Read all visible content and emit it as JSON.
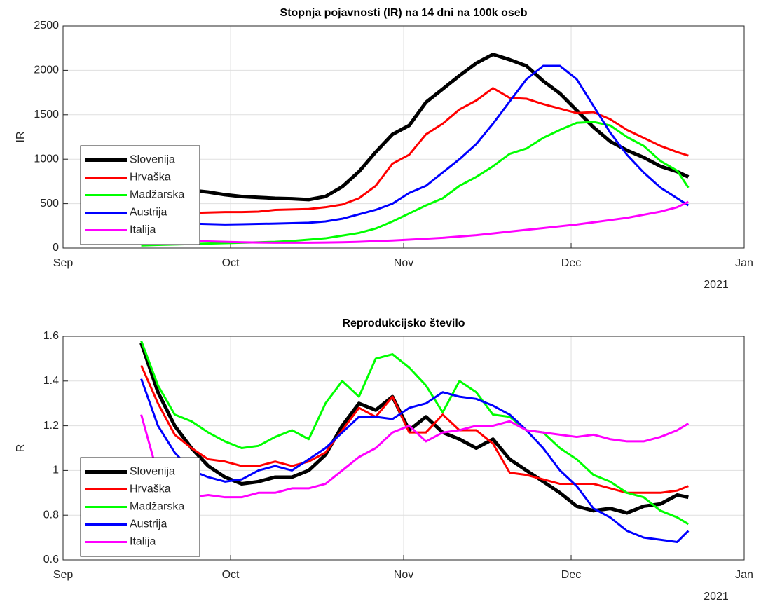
{
  "chart_data": [
    {
      "type": "line",
      "title": "Stopnja pojavnosti (IR) na 14 dni na 100k oseb",
      "ylabel": "IR",
      "x": [
        14,
        17,
        20,
        23,
        26,
        29,
        32,
        35,
        38,
        41,
        44,
        47,
        50,
        53,
        56,
        59,
        62,
        65,
        68,
        71,
        74,
        77,
        80,
        83,
        86,
        89,
        92,
        95,
        98,
        101,
        104,
        107,
        110,
        112
      ],
      "xlim": [
        0,
        122
      ],
      "xticks": [
        {
          "value": 0,
          "label": "Sep"
        },
        {
          "value": 30,
          "label": "Oct"
        },
        {
          "value": 61,
          "label": "Nov"
        },
        {
          "value": 91,
          "label": "Dec"
        },
        {
          "value": 122,
          "label": "Jan"
        }
      ],
      "x_annotation": "2021",
      "ylim": [
        0,
        2500
      ],
      "yticks": [
        0,
        500,
        1000,
        1500,
        2000,
        2500
      ],
      "grid": true,
      "legend": "lower left",
      "series": [
        {
          "name": "Slovenija",
          "color": "#000000",
          "values": [
            690,
            680,
            670,
            650,
            630,
            600,
            580,
            570,
            560,
            555,
            545,
            580,
            690,
            860,
            1080,
            1280,
            1380,
            1640,
            1790,
            1940,
            2080,
            2180,
            2120,
            2050,
            1880,
            1740,
            1550,
            1360,
            1200,
            1100,
            1020,
            920,
            860,
            800
          ]
        },
        {
          "name": "Hrvaška",
          "color": "#ff0000",
          "values": [
            390,
            390,
            390,
            395,
            400,
            405,
            405,
            410,
            430,
            435,
            440,
            460,
            490,
            560,
            700,
            950,
            1050,
            1280,
            1400,
            1560,
            1660,
            1800,
            1690,
            1680,
            1620,
            1570,
            1520,
            1530,
            1450,
            1330,
            1240,
            1150,
            1080,
            1040
          ]
        },
        {
          "name": "Madžarska",
          "color": "#00ff00",
          "values": [
            30,
            35,
            40,
            45,
            50,
            55,
            60,
            65,
            70,
            80,
            95,
            110,
            140,
            170,
            220,
            300,
            390,
            480,
            560,
            700,
            800,
            920,
            1060,
            1120,
            1240,
            1330,
            1410,
            1420,
            1380,
            1250,
            1150,
            980,
            870,
            680
          ]
        },
        {
          "name": "Austrija",
          "color": "#0000ff",
          "values": [
            290,
            285,
            280,
            275,
            270,
            265,
            268,
            272,
            275,
            280,
            285,
            300,
            330,
            380,
            430,
            500,
            620,
            700,
            850,
            1000,
            1170,
            1400,
            1650,
            1900,
            2050,
            2050,
            1900,
            1600,
            1300,
            1050,
            850,
            680,
            560,
            480
          ]
        },
        {
          "name": "Italija",
          "color": "#ff00ff",
          "values": [
            110,
            100,
            90,
            80,
            75,
            70,
            65,
            62,
            60,
            60,
            60,
            62,
            65,
            70,
            78,
            85,
            95,
            105,
            115,
            130,
            145,
            165,
            185,
            205,
            225,
            245,
            265,
            290,
            315,
            340,
            375,
            410,
            460,
            520
          ]
        }
      ]
    },
    {
      "type": "line",
      "title": "Reprodukcijsko število",
      "ylabel": "R",
      "x": [
        14,
        17,
        20,
        23,
        26,
        29,
        32,
        35,
        38,
        41,
        44,
        47,
        50,
        53,
        56,
        59,
        62,
        65,
        68,
        71,
        74,
        77,
        80,
        83,
        86,
        89,
        92,
        95,
        98,
        101,
        104,
        107,
        110,
        112
      ],
      "xlim": [
        0,
        122
      ],
      "xticks": [
        {
          "value": 0,
          "label": "Sep"
        },
        {
          "value": 30,
          "label": "Oct"
        },
        {
          "value": 61,
          "label": "Nov"
        },
        {
          "value": 91,
          "label": "Dec"
        },
        {
          "value": 122,
          "label": "Jan"
        }
      ],
      "x_annotation": "2021",
      "ylim": [
        0.6,
        1.6
      ],
      "yticks": [
        0.6,
        0.8,
        1,
        1.2,
        1.4,
        1.6
      ],
      "grid": true,
      "legend": "lower left",
      "series": [
        {
          "name": "Slovenija",
          "color": "#000000",
          "values": [
            1.57,
            1.35,
            1.2,
            1.1,
            1.02,
            0.97,
            0.94,
            0.95,
            0.97,
            0.97,
            1.0,
            1.07,
            1.2,
            1.3,
            1.27,
            1.33,
            1.18,
            1.24,
            1.17,
            1.14,
            1.1,
            1.14,
            1.05,
            1.0,
            0.95,
            0.9,
            0.84,
            0.82,
            0.83,
            0.81,
            0.84,
            0.85,
            0.89,
            0.88
          ]
        },
        {
          "name": "Hrvaška",
          "color": "#ff0000",
          "values": [
            1.47,
            1.3,
            1.16,
            1.1,
            1.05,
            1.04,
            1.02,
            1.02,
            1.04,
            1.02,
            1.04,
            1.08,
            1.18,
            1.28,
            1.24,
            1.33,
            1.17,
            1.17,
            1.25,
            1.18,
            1.18,
            1.12,
            0.99,
            0.98,
            0.96,
            0.94,
            0.94,
            0.94,
            0.92,
            0.9,
            0.9,
            0.9,
            0.91,
            0.93
          ]
        },
        {
          "name": "Madžarska",
          "color": "#00ff00",
          "values": [
            1.58,
            1.38,
            1.25,
            1.22,
            1.17,
            1.13,
            1.1,
            1.11,
            1.15,
            1.18,
            1.14,
            1.3,
            1.4,
            1.33,
            1.5,
            1.52,
            1.46,
            1.38,
            1.26,
            1.4,
            1.35,
            1.25,
            1.24,
            1.18,
            1.17,
            1.1,
            1.05,
            0.98,
            0.95,
            0.9,
            0.88,
            0.82,
            0.79,
            0.76
          ]
        },
        {
          "name": "Austrija",
          "color": "#0000ff",
          "values": [
            1.41,
            1.2,
            1.08,
            1.0,
            0.97,
            0.95,
            0.96,
            1.0,
            1.02,
            1.0,
            1.05,
            1.1,
            1.17,
            1.24,
            1.24,
            1.23,
            1.28,
            1.3,
            1.35,
            1.33,
            1.32,
            1.29,
            1.25,
            1.18,
            1.1,
            1.0,
            0.93,
            0.83,
            0.79,
            0.73,
            0.7,
            0.69,
            0.68,
            0.73
          ]
        },
        {
          "name": "Italija",
          "color": "#ff00ff",
          "values": [
            1.25,
            0.98,
            0.9,
            0.88,
            0.89,
            0.88,
            0.88,
            0.9,
            0.9,
            0.92,
            0.92,
            0.94,
            1.0,
            1.06,
            1.1,
            1.17,
            1.2,
            1.13,
            1.17,
            1.18,
            1.2,
            1.2,
            1.22,
            1.18,
            1.17,
            1.16,
            1.15,
            1.16,
            1.14,
            1.13,
            1.13,
            1.15,
            1.18,
            1.21
          ]
        }
      ]
    }
  ]
}
